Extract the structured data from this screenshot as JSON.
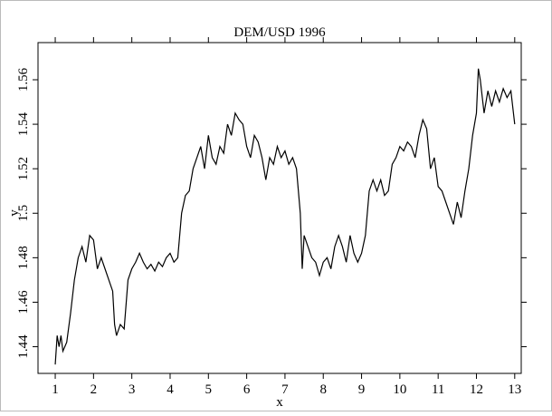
{
  "chart_data": {
    "type": "line",
    "title": "DEM/USD 1996",
    "xlabel": "x",
    "ylabel": "y",
    "color": "#000000",
    "x": [
      1.0,
      1.05,
      1.1,
      1.15,
      1.2,
      1.3,
      1.4,
      1.5,
      1.6,
      1.7,
      1.8,
      1.9,
      2.0,
      2.1,
      2.2,
      2.3,
      2.4,
      2.5,
      2.55,
      2.6,
      2.7,
      2.8,
      2.9,
      3.0,
      3.1,
      3.2,
      3.3,
      3.4,
      3.5,
      3.6,
      3.7,
      3.8,
      3.9,
      4.0,
      4.1,
      4.2,
      4.3,
      4.4,
      4.5,
      4.6,
      4.7,
      4.8,
      4.9,
      5.0,
      5.1,
      5.2,
      5.3,
      5.4,
      5.5,
      5.6,
      5.7,
      5.8,
      5.9,
      6.0,
      6.1,
      6.2,
      6.3,
      6.4,
      6.5,
      6.6,
      6.7,
      6.8,
      6.9,
      7.0,
      7.1,
      7.2,
      7.3,
      7.4,
      7.45,
      7.5,
      7.6,
      7.7,
      7.8,
      7.9,
      8.0,
      8.1,
      8.2,
      8.3,
      8.4,
      8.5,
      8.6,
      8.7,
      8.8,
      8.9,
      9.0,
      9.1,
      9.2,
      9.3,
      9.4,
      9.5,
      9.6,
      9.7,
      9.8,
      9.9,
      10.0,
      10.1,
      10.2,
      10.3,
      10.4,
      10.5,
      10.6,
      10.7,
      10.8,
      10.9,
      11.0,
      11.1,
      11.2,
      11.3,
      11.4,
      11.5,
      11.6,
      11.7,
      11.8,
      11.9,
      12.0,
      12.05,
      12.1,
      12.2,
      12.3,
      12.4,
      12.5,
      12.6,
      12.7,
      12.8,
      12.9,
      13.0
    ],
    "values": [
      1.432,
      1.445,
      1.44,
      1.445,
      1.438,
      1.442,
      1.455,
      1.47,
      1.48,
      1.485,
      1.478,
      1.49,
      1.488,
      1.475,
      1.48,
      1.475,
      1.47,
      1.465,
      1.45,
      1.445,
      1.45,
      1.448,
      1.47,
      1.475,
      1.478,
      1.482,
      1.478,
      1.475,
      1.477,
      1.474,
      1.478,
      1.476,
      1.48,
      1.482,
      1.478,
      1.48,
      1.5,
      1.508,
      1.51,
      1.52,
      1.525,
      1.53,
      1.52,
      1.535,
      1.525,
      1.522,
      1.53,
      1.527,
      1.54,
      1.535,
      1.545,
      1.542,
      1.54,
      1.53,
      1.525,
      1.535,
      1.532,
      1.525,
      1.515,
      1.525,
      1.522,
      1.53,
      1.525,
      1.528,
      1.522,
      1.525,
      1.52,
      1.5,
      1.475,
      1.49,
      1.485,
      1.48,
      1.478,
      1.472,
      1.478,
      1.48,
      1.475,
      1.485,
      1.49,
      1.485,
      1.478,
      1.49,
      1.482,
      1.478,
      1.482,
      1.49,
      1.51,
      1.515,
      1.51,
      1.515,
      1.508,
      1.51,
      1.522,
      1.525,
      1.53,
      1.528,
      1.532,
      1.53,
      1.525,
      1.535,
      1.542,
      1.538,
      1.52,
      1.525,
      1.512,
      1.51,
      1.505,
      1.5,
      1.495,
      1.505,
      1.498,
      1.51,
      1.52,
      1.535,
      1.545,
      1.565,
      1.56,
      1.545,
      1.555,
      1.548,
      1.555,
      1.55,
      1.556,
      1.552,
      1.555,
      1.54
    ],
    "xlim": [
      0.55,
      13.17
    ],
    "ylim": [
      1.428,
      1.5767
    ],
    "xticks": [
      1,
      2,
      3,
      4,
      5,
      6,
      7,
      8,
      9,
      10,
      11,
      12,
      13
    ],
    "yticks": [
      1.44,
      1.46,
      1.48,
      1.5,
      1.52,
      1.54,
      1.56
    ]
  }
}
